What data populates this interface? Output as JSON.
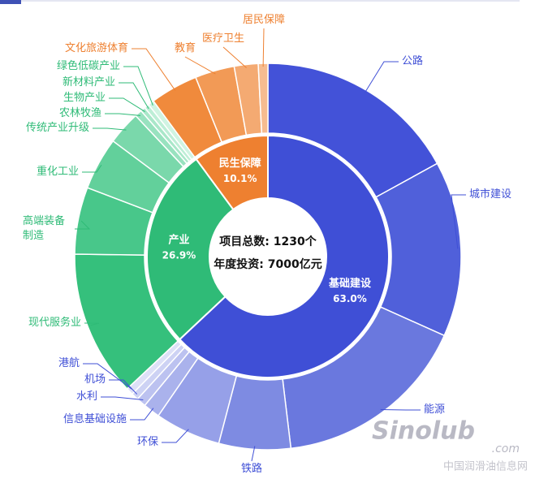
{
  "chart_data": {
    "type": "sunburst",
    "center_text": [
      "项目总数: 1230个",
      "年度投资: 7000亿元"
    ],
    "categories": [
      "基础建设",
      "产业",
      "民生保障"
    ],
    "values": [
      63.0,
      26.9,
      10.1
    ],
    "value_labels": [
      "63.0%",
      "26.9%",
      "10.1%"
    ],
    "colors": [
      "#3f4fd6",
      "#2fbb77",
      "#ee8030"
    ],
    "children": [
      {
        "categories": [
          "公路",
          "城市建设",
          "能源",
          "铁路",
          "环保",
          "信息基础设施",
          "水利",
          "机场",
          "港航"
        ],
        "values": [
          17.0,
          14.7,
          16.4,
          6.0,
          5.5,
          1.4,
          0.8,
          0.6,
          0.6
        ],
        "colors": [
          "#4352d8",
          "#5060da",
          "#6a78de",
          "#7e8be2",
          "#96a0e8",
          "#aab2ec",
          "#bcc2f0",
          "#cdd2f4",
          "#dde0f7"
        ]
      },
      {
        "categories": [
          "现代服务业",
          "高端装备\n制造",
          "重化工业",
          "传统产业升级",
          "农林牧渔",
          "生物产业",
          "新材料产业",
          "绿色低碳产业"
        ],
        "values": [
          12.2,
          5.6,
          4.4,
          2.8,
          0.6,
          0.4,
          0.4,
          0.5
        ],
        "colors": [
          "#35c07c",
          "#48c78a",
          "#62d09b",
          "#7ad8ab",
          "#98e2bf",
          "#a9e7c9",
          "#bdeed6",
          "#d0f4e2"
        ]
      },
      {
        "categories": [
          "文化旅游体育",
          "教育",
          "医疗卫生",
          "居民保障"
        ],
        "values": [
          4.0,
          3.3,
          2.0,
          0.8
        ],
        "colors": [
          "#f08a3c",
          "#f29a56",
          "#f4aa72",
          "#f6bc90"
        ]
      }
    ]
  },
  "watermark": {
    "brand": "Sinolub",
    "domain": ".com",
    "site": "中国润滑油信息网"
  }
}
